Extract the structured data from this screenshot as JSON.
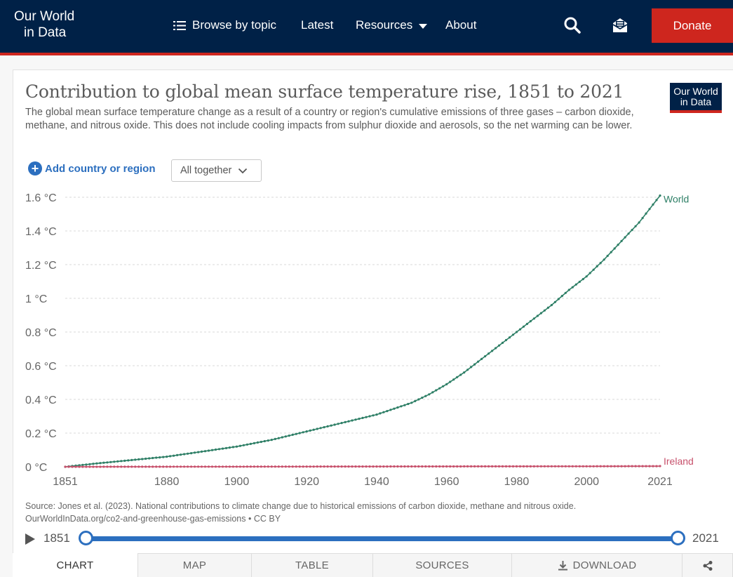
{
  "header": {
    "logo_line1": "Our World",
    "logo_line2": "in Data",
    "nav": {
      "browse": "Browse by topic",
      "latest": "Latest",
      "resources": "Resources",
      "about": "About"
    },
    "donate": "Donate",
    "icons": [
      "list-icon",
      "search-icon",
      "newsletter-icon",
      "chevron-down-icon"
    ]
  },
  "card": {
    "logo_line1": "Our World",
    "logo_line2": "in Data",
    "add_country": "Add country or region",
    "dropdown_value": "All together"
  },
  "source": {
    "line1": "Source: Jones et al. (2023). National contributions to climate change due to historical emissions of carbon dioxide, methane and nitrous oxide.",
    "line2": "OurWorldInData.org/co2-and-greenhouse-gas-emissions • CC BY"
  },
  "timeline": {
    "start": "1851",
    "end": "2021",
    "start_fraction": 0,
    "end_fraction": 1
  },
  "tabs": {
    "chart": "CHART",
    "map": "MAP",
    "table": "TABLE",
    "sources": "SOURCES",
    "download": "DOWNLOAD"
  },
  "colors": {
    "navy": "#002147",
    "red": "#ce261e",
    "world": "#2e7f66",
    "ireland": "#c7506b",
    "link": "#2c6fbf"
  },
  "chart_data": {
    "type": "line",
    "title": "Contribution to global mean surface temperature rise, 1851 to 2021",
    "subtitle": "The global mean surface temperature change as a result of a country or region's cumulative emissions of three gases – carbon dioxide, methane, and nitrous oxide. This does not include cooling impacts from sulphur dioxide and aerosols, so the net warming can be lower.",
    "xlabel": "",
    "ylabel": "",
    "xlim": [
      1851,
      2021
    ],
    "ylim": [
      0,
      1.6
    ],
    "x_ticks": [
      1851,
      1880,
      1900,
      1920,
      1940,
      1960,
      1980,
      2000,
      2021
    ],
    "y_ticks": [
      {
        "value": 0,
        "label": "0 °C"
      },
      {
        "value": 0.2,
        "label": "0.2 °C"
      },
      {
        "value": 0.4,
        "label": "0.4 °C"
      },
      {
        "value": 0.6,
        "label": "0.6 °C"
      },
      {
        "value": 0.8,
        "label": "0.8 °C"
      },
      {
        "value": 1.0,
        "label": "1 °C"
      },
      {
        "value": 1.2,
        "label": "1.2 °C"
      },
      {
        "value": 1.4,
        "label": "1.4 °C"
      },
      {
        "value": 1.6,
        "label": "1.6 °C"
      }
    ],
    "grid": "horizontal dashed",
    "legend": "end-of-line labels",
    "series": [
      {
        "name": "World",
        "color": "#2e7f66",
        "x": [
          1851,
          1860,
          1870,
          1880,
          1890,
          1900,
          1910,
          1920,
          1930,
          1940,
          1950,
          1955,
          1960,
          1965,
          1970,
          1975,
          1980,
          1985,
          1990,
          1995,
          2000,
          2005,
          2010,
          2015,
          2021
        ],
        "y": [
          0.0,
          0.02,
          0.04,
          0.06,
          0.09,
          0.12,
          0.16,
          0.21,
          0.26,
          0.31,
          0.38,
          0.43,
          0.49,
          0.56,
          0.64,
          0.72,
          0.8,
          0.88,
          0.96,
          1.05,
          1.13,
          1.23,
          1.34,
          1.45,
          1.61
        ]
      },
      {
        "name": "Ireland",
        "color": "#c7506b",
        "x": [
          1851,
          1900,
          1950,
          2000,
          2021
        ],
        "y": [
          0.0,
          0.001,
          0.002,
          0.003,
          0.004
        ]
      }
    ]
  }
}
